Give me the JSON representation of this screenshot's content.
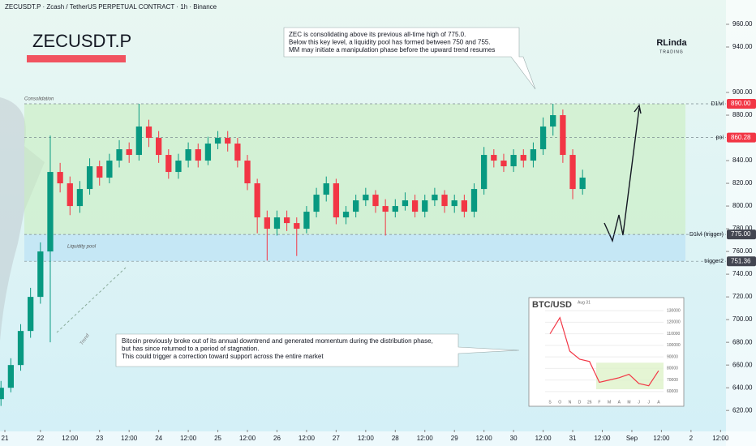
{
  "chart_data": {
    "type": "candlestick",
    "title": "ZECUSDT.P",
    "subtitle": "ZECUSDT.P · Zcash / TetherUS PERPETUAL CONTRACT · 1h · Binance",
    "logo": [
      "RLinda",
      "TRADING"
    ],
    "up_color": "#089981",
    "down_color": "#f23645",
    "ylim": [
      603,
      981.4
    ],
    "yticks": [
      {
        "value": 960,
        "label": "960.00"
      },
      {
        "value": 940,
        "label": "940.00"
      },
      {
        "value": 900,
        "label": "900.00"
      },
      {
        "value": 880,
        "label": "880.00"
      },
      {
        "value": 840,
        "label": "840.00"
      },
      {
        "value": 820,
        "label": "820.00"
      },
      {
        "value": 800,
        "label": "800.00"
      },
      {
        "value": 780,
        "label": "780.00"
      },
      {
        "value": 760,
        "label": "760.00"
      },
      {
        "value": 740,
        "label": "740.00"
      },
      {
        "value": 720,
        "label": "720.00"
      },
      {
        "value": 700,
        "label": "700.00"
      },
      {
        "value": 680,
        "label": "680.00"
      },
      {
        "value": 660,
        "label": "660.00"
      },
      {
        "value": 640,
        "label": "640.00"
      },
      {
        "value": 620,
        "label": "620.00"
      }
    ],
    "xlim": [
      -16.4,
      278.2
    ],
    "xticks": [
      {
        "value": -24,
        "label": "21"
      },
      {
        "value": 0,
        "label": "22"
      },
      {
        "value": 12,
        "label": "12:00"
      },
      {
        "value": 24,
        "label": "23"
      },
      {
        "value": 36,
        "label": "12:00"
      },
      {
        "value": 48,
        "label": "24"
      },
      {
        "value": 60,
        "label": "12:00"
      },
      {
        "value": 72,
        "label": "25"
      },
      {
        "value": 84,
        "label": "12:00"
      },
      {
        "value": 96,
        "label": "26"
      },
      {
        "value": 108,
        "label": "12:00"
      },
      {
        "value": 120,
        "label": "27"
      },
      {
        "value": 132,
        "label": "12:00"
      },
      {
        "value": 144,
        "label": "28"
      },
      {
        "value": 156,
        "label": "12:00"
      },
      {
        "value": 168,
        "label": "29"
      },
      {
        "value": 180,
        "label": "12:00"
      },
      {
        "value": 192,
        "label": "30"
      },
      {
        "value": 204,
        "label": "12:00"
      },
      {
        "value": 216,
        "label": "31"
      },
      {
        "value": 228,
        "label": "12:00"
      },
      {
        "value": 240,
        "label": "Sep"
      },
      {
        "value": 252,
        "label": "12:00"
      },
      {
        "value": 264,
        "label": "2"
      },
      {
        "value": 276,
        "label": "12:00"
      }
    ],
    "x": [
      -16,
      -12,
      -8,
      -4,
      0,
      4,
      8,
      12,
      16,
      20,
      24,
      28,
      32,
      36,
      40,
      44,
      48,
      52,
      56,
      60,
      64,
      68,
      72,
      76,
      80,
      84,
      88,
      92,
      96,
      100,
      104,
      108,
      112,
      116,
      120,
      124,
      128,
      132,
      136,
      140,
      144,
      148,
      152,
      156,
      160,
      164,
      168,
      172,
      176,
      180,
      184,
      188,
      192,
      196,
      200,
      204,
      208,
      212,
      216,
      220
    ],
    "open": [
      630,
      640,
      660,
      690,
      720,
      760,
      830,
      820,
      800,
      815,
      835,
      825,
      840,
      850,
      845,
      870,
      860,
      845,
      830,
      840,
      850,
      840,
      855,
      860,
      855,
      840,
      820,
      790,
      780,
      790,
      785,
      780,
      795,
      810,
      820,
      790,
      795,
      805,
      810,
      800,
      795,
      800,
      805,
      795,
      805,
      810,
      800,
      805,
      795,
      815,
      845,
      840,
      835,
      845,
      840,
      850,
      870,
      880,
      845,
      815
    ],
    "high": [
      646,
      666,
      696,
      728,
      768,
      862,
      838,
      826,
      822,
      842,
      840,
      846,
      858,
      856,
      890,
      876,
      866,
      850,
      846,
      856,
      855,
      861,
      866,
      866,
      860,
      845,
      824,
      796,
      796,
      796,
      790,
      800,
      816,
      826,
      824,
      800,
      810,
      816,
      814,
      806,
      806,
      812,
      810,
      810,
      816,
      814,
      810,
      810,
      820,
      852,
      850,
      846,
      850,
      850,
      856,
      878,
      890,
      885,
      850,
      832
    ],
    "low": [
      624,
      636,
      655,
      684,
      714,
      680,
      812,
      792,
      794,
      810,
      818,
      820,
      834,
      838,
      840,
      852,
      838,
      824,
      824,
      834,
      834,
      836,
      850,
      848,
      834,
      814,
      776,
      752,
      774,
      778,
      756,
      776,
      790,
      804,
      784,
      784,
      790,
      800,
      794,
      774,
      790,
      796,
      790,
      790,
      800,
      794,
      794,
      790,
      790,
      810,
      834,
      830,
      830,
      834,
      834,
      845,
      862,
      838,
      806,
      810
    ],
    "close": [
      640,
      660,
      690,
      720,
      760,
      830,
      820,
      800,
      815,
      835,
      825,
      840,
      850,
      845,
      870,
      860,
      845,
      830,
      840,
      850,
      840,
      855,
      860,
      855,
      840,
      820,
      790,
      780,
      790,
      785,
      780,
      795,
      810,
      820,
      790,
      795,
      805,
      810,
      800,
      795,
      800,
      805,
      795,
      805,
      810,
      800,
      805,
      795,
      815,
      845,
      840,
      835,
      845,
      840,
      850,
      870,
      880,
      845,
      815,
      825
    ],
    "levels": [
      {
        "name": "D1lvl",
        "value": 890,
        "value_label": "890.00",
        "color": "#f23645"
      },
      {
        "name": "poi",
        "value": 860.28,
        "value_label": "860.28",
        "color": "#f23645"
      },
      {
        "name": "D1lvl (trigger)",
        "value": 775,
        "value_label": "775.00",
        "color": "#434651"
      },
      {
        "name": "trigger2",
        "value": 751.36,
        "value_label": "751.36",
        "color": "#434651"
      }
    ],
    "zone_labels": [
      "Consolidation",
      "Liquidity pool",
      "Trend"
    ],
    "annotations": [
      {
        "lines": [
          "ZEC is consolidating above its previous all-time high of 775.0.",
          "Below this key level, a liquidity pool has formed between 750 and 755.",
          "MM may initiate a manipulation phase before the upward trend resumes"
        ]
      },
      {
        "lines": [
          "Bitcoin previously broke out of its annual downtrend and generated momentum during the distribution phase,",
          "but has since returned to a period of stagnation.",
          "This could trigger a correction toward support across the entire market"
        ]
      }
    ],
    "inset": {
      "title": "BTC/USD",
      "date": "Aug 31",
      "categories": [
        "S",
        "O",
        "N",
        "D",
        "26",
        "F",
        "M",
        "A",
        "M",
        "J",
        "J",
        "A"
      ],
      "values": [
        110000,
        124000,
        95000,
        88000,
        86000,
        68000,
        70000,
        72000,
        75000,
        67000,
        65000,
        78000
      ],
      "ylim": [
        55000,
        135000
      ],
      "yticks": [
        130000,
        120000,
        110000,
        100000,
        90000,
        80000,
        70000,
        60000
      ]
    }
  }
}
